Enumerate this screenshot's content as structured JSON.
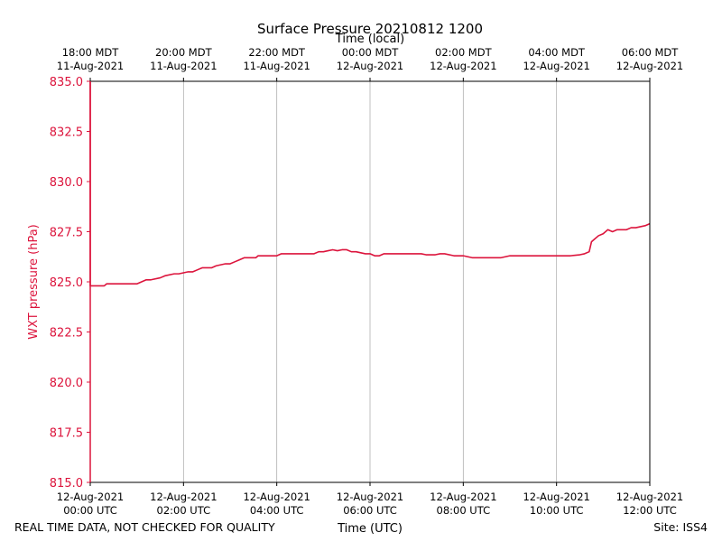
{
  "chart_data": {
    "type": "line",
    "title": "Surface Pressure 20210812 1200",
    "top_axis_label": "Time (local)",
    "xlabel": "Time (UTC)",
    "ylabel": "WXT pressure (hPa)",
    "ylim": [
      815.0,
      835.0
    ],
    "xlim_hours_utc": [
      0,
      12
    ],
    "grid": "vertical",
    "y_ticks": [
      815.0,
      817.5,
      820.0,
      822.5,
      825.0,
      827.5,
      830.0,
      832.5,
      835.0
    ],
    "y_tick_labels": [
      "815.0",
      "817.5",
      "820.0",
      "822.5",
      "825.0",
      "827.5",
      "830.0",
      "832.5",
      "835.0"
    ],
    "x_ticks_hours": [
      0,
      2,
      4,
      6,
      8,
      10,
      12
    ],
    "x_tick_labels_utc": [
      [
        "12-Aug-2021",
        "00:00 UTC"
      ],
      [
        "12-Aug-2021",
        "02:00 UTC"
      ],
      [
        "12-Aug-2021",
        "04:00 UTC"
      ],
      [
        "12-Aug-2021",
        "06:00 UTC"
      ],
      [
        "12-Aug-2021",
        "08:00 UTC"
      ],
      [
        "12-Aug-2021",
        "10:00 UTC"
      ],
      [
        "12-Aug-2021",
        "12:00 UTC"
      ]
    ],
    "x_tick_labels_local": [
      [
        "18:00 MDT",
        "11-Aug-2021"
      ],
      [
        "20:00 MDT",
        "11-Aug-2021"
      ],
      [
        "22:00 MDT",
        "11-Aug-2021"
      ],
      [
        "00:00 MDT",
        "12-Aug-2021"
      ],
      [
        "02:00 MDT",
        "12-Aug-2021"
      ],
      [
        "04:00 MDT",
        "12-Aug-2021"
      ],
      [
        "06:00 MDT",
        "12-Aug-2021"
      ]
    ],
    "series": [
      {
        "name": "WXT pressure",
        "color": "#dc143c",
        "x_hours": [
          0,
          0,
          0.3,
          0.35,
          0.5,
          0.7,
          1.0,
          1.1,
          1.2,
          1.3,
          1.5,
          1.6,
          1.8,
          1.9,
          2.1,
          2.2,
          2.3,
          2.4,
          2.6,
          2.7,
          2.9,
          3.0,
          3.1,
          3.2,
          3.3,
          3.4,
          3.55,
          3.6,
          3.8,
          4.0,
          4.1,
          4.2,
          4.4,
          4.8,
          4.9,
          5.0,
          5.1,
          5.2,
          5.3,
          5.4,
          5.5,
          5.6,
          5.7,
          5.8,
          5.9,
          6.0,
          6.1,
          6.2,
          6.3,
          6.5,
          6.8,
          7.0,
          7.1,
          7.2,
          7.3,
          7.4,
          7.5,
          7.6,
          7.8,
          7.9,
          8.0,
          8.2,
          8.4,
          8.6,
          8.8,
          9.0,
          9.1,
          9.3,
          9.6,
          10.0,
          10.3,
          10.5,
          10.6,
          10.7,
          10.75,
          10.8,
          10.9,
          11.0,
          11.1,
          11.2,
          11.3,
          11.5,
          11.6,
          11.7,
          11.8,
          11.9,
          12.0
        ],
        "values": [
          835.0,
          824.8,
          824.8,
          824.9,
          824.9,
          824.9,
          824.9,
          825.0,
          825.1,
          825.1,
          825.2,
          825.3,
          825.4,
          825.4,
          825.5,
          825.5,
          825.6,
          825.7,
          825.7,
          825.8,
          825.9,
          825.9,
          826.0,
          826.1,
          826.2,
          826.2,
          826.2,
          826.3,
          826.3,
          826.3,
          826.4,
          826.4,
          826.4,
          826.4,
          826.5,
          826.5,
          826.55,
          826.6,
          826.55,
          826.6,
          826.6,
          826.5,
          826.5,
          826.45,
          826.4,
          826.4,
          826.3,
          826.3,
          826.4,
          826.4,
          826.4,
          826.4,
          826.4,
          826.35,
          826.35,
          826.35,
          826.4,
          826.4,
          826.3,
          826.3,
          826.3,
          826.2,
          826.2,
          826.2,
          826.2,
          826.3,
          826.3,
          826.3,
          826.3,
          826.3,
          826.3,
          826.35,
          826.4,
          826.5,
          827.0,
          827.1,
          827.3,
          827.4,
          827.6,
          827.5,
          827.6,
          827.6,
          827.7,
          827.7,
          827.75,
          827.8,
          827.9
        ]
      }
    ]
  },
  "footer": {
    "left_note": "REAL TIME DATA, NOT CHECKED FOR QUALITY",
    "site_label": "Site: ISS4"
  },
  "colors": {
    "series": "#dc143c",
    "y_axis": "#dc143c",
    "grid": "#b0b0b0"
  }
}
